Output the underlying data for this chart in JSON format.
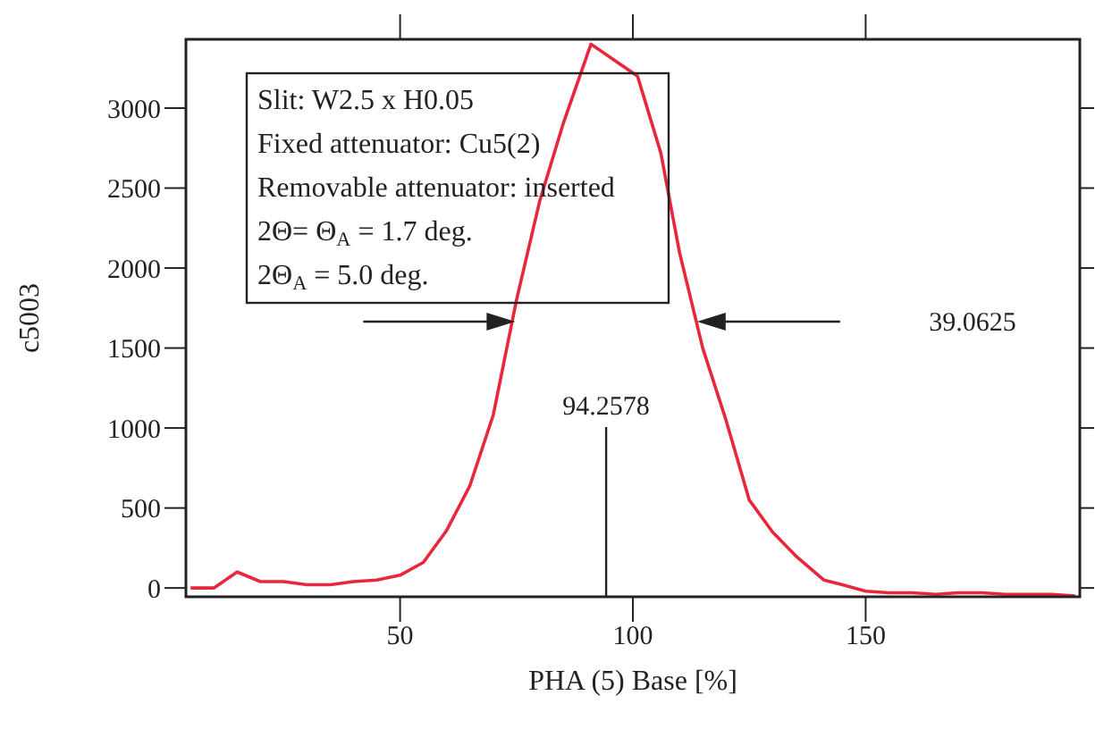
{
  "chart_data": {
    "type": "line",
    "xlabel": "PHA (5) Base [%]",
    "ylabel": "c5003",
    "x": [
      5,
      10,
      15,
      20,
      25,
      30,
      35,
      40,
      45,
      50,
      55,
      60,
      65,
      70,
      75,
      80,
      85,
      91,
      95,
      101,
      106,
      110,
      115,
      120,
      125,
      130,
      135,
      141,
      145,
      150,
      155,
      160,
      165,
      170,
      175,
      180,
      185,
      190,
      195
    ],
    "series": [
      {
        "color": "#e8283a",
        "values": [
          0,
          0,
          100,
          40,
          40,
          20,
          20,
          40,
          50,
          80,
          160,
          360,
          640,
          1080,
          1800,
          2420,
          2900,
          3400,
          3320,
          3200,
          2720,
          2100,
          1500,
          1050,
          550,
          350,
          200,
          50,
          20,
          -20,
          -30,
          -30,
          -40,
          -30,
          -30,
          -40,
          -40,
          -40,
          -50
        ]
      }
    ],
    "xlim": [
      4,
      196
    ],
    "ylim": [
      -55,
      3430
    ],
    "xticks": [
      50,
      100,
      150
    ],
    "yticks": [
      0,
      500,
      1000,
      1500,
      2000,
      2500,
      3000
    ],
    "grid": false,
    "legend": false,
    "marker": "none",
    "line_style": "solid",
    "annotations": [
      "Slit: W2.5 x H0.05",
      "Fixed attenuator: Cu5(2)",
      "Removable attenuator: inserted",
      "2Θ= Θ$_{A}$ = 1.7 deg.",
      "2Θ$_{A}$ = 5.0 deg.",
      "39.0625"
    ],
    "ref_lines": [
      {
        "axis": "x",
        "value": 94.2578,
        "label": "94.2578"
      }
    ]
  }
}
